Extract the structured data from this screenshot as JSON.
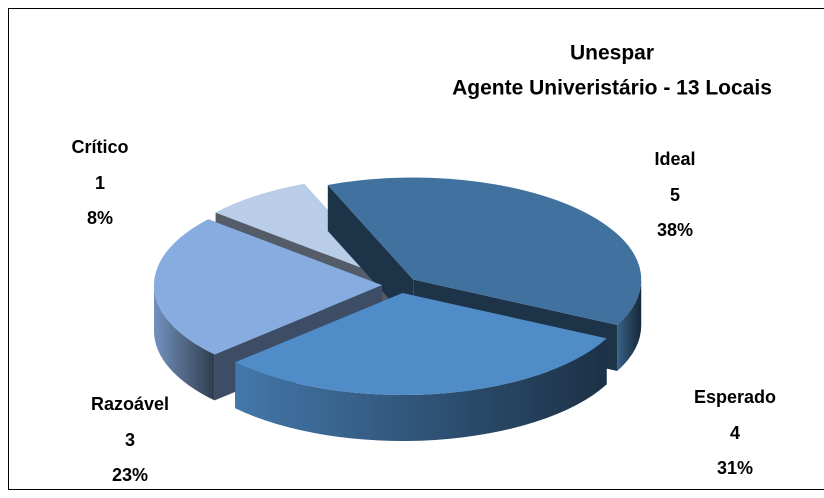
{
  "chart_data": {
    "type": "pie",
    "title": "Unespar",
    "subtitle": "Agente Univeristário - 13 Locais",
    "categories": [
      "Ideal",
      "Esperado",
      "Razoável",
      "Crítico"
    ],
    "values": [
      5,
      4,
      3,
      1
    ],
    "percent_labels": [
      "38%",
      "31%",
      "23%",
      "8%"
    ],
    "colors": [
      "#41729f",
      "#508cc8",
      "#86ace0",
      "#b9cde8"
    ],
    "three_d": true,
    "exploded": true
  }
}
